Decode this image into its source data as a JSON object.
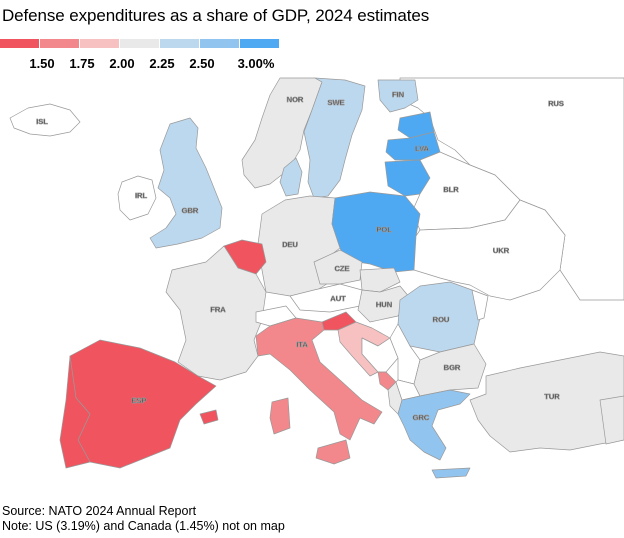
{
  "title": "Defense expenditures as a share of GDP, 2024 estimates",
  "legend": {
    "colors": [
      "#f0545f",
      "#f2888b",
      "#f7c1c1",
      "#e9e9e9",
      "#bcd8ef",
      "#91c4ef",
      "#4ea9f2"
    ],
    "labels": [
      "1.50",
      "1.75",
      "2.00",
      "2.25",
      "2.50",
      "3.00%"
    ]
  },
  "countries": {
    "ISL": {
      "label": "ISL",
      "band": "no-data"
    },
    "NOR": {
      "label": "NOR",
      "band": "2.00-2.25"
    },
    "SWE": {
      "label": "SWE",
      "band": "2.25-2.50"
    },
    "FIN": {
      "label": "FIN",
      "band": "2.25-2.50"
    },
    "RUS": {
      "label": "RUS",
      "band": "no-data"
    },
    "LVA": {
      "label": "LVA",
      "band": ">3.00"
    },
    "IRL": {
      "label": "IRL",
      "band": "no-data"
    },
    "GBR": {
      "label": "GBR",
      "band": "2.25-2.50"
    },
    "BLR": {
      "label": "BLR",
      "band": "no-data"
    },
    "POL": {
      "label": "POL",
      "band": ">3.00"
    },
    "DEU": {
      "label": "DEU",
      "band": "2.00-2.25"
    },
    "UKR": {
      "label": "UKR",
      "band": "no-data"
    },
    "CZE": {
      "label": "CZE",
      "band": "2.00-2.25"
    },
    "FRA": {
      "label": "FRA",
      "band": "2.00-2.25"
    },
    "AUT": {
      "label": "AUT",
      "band": "no-data"
    },
    "HUN": {
      "label": "HUN",
      "band": "2.00-2.25"
    },
    "ROU": {
      "label": "ROU",
      "band": "2.25-2.50"
    },
    "ITA": {
      "label": "ITA",
      "band": "1.50-1.75"
    },
    "BGR": {
      "label": "BGR",
      "band": "2.00-2.25"
    },
    "ESP": {
      "label": "ESP",
      "band": "<1.50"
    },
    "TUR": {
      "label": "TUR",
      "band": "2.00-2.25"
    },
    "GRC": {
      "label": "GRC",
      "band": "2.50-3.00"
    }
  },
  "source": "Source: NATO 2024 Annual Report",
  "note": "Note: US (3.19%) and Canada (1.45%) not on map"
}
